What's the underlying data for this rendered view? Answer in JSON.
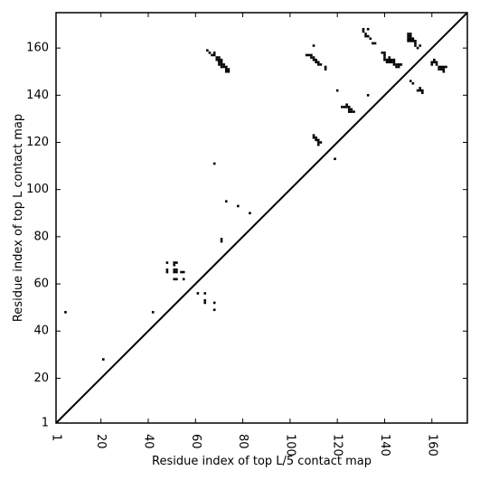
{
  "chart_data": {
    "type": "scatter",
    "xlabel": "Residue index of top L/5 contact map",
    "ylabel": "Residue index of top L contact map",
    "xlim": [
      1,
      175
    ],
    "ylim": [
      1,
      175
    ],
    "xticks": [
      1,
      20,
      40,
      60,
      80,
      100,
      120,
      140,
      160
    ],
    "yticks": [
      1,
      20,
      40,
      60,
      80,
      100,
      120,
      140,
      160
    ],
    "diagonal": true,
    "grid": false,
    "color": "#000000",
    "points": [
      [
        5,
        48
      ],
      [
        21,
        28
      ],
      [
        42,
        48
      ],
      [
        48,
        65
      ],
      [
        48,
        66
      ],
      [
        48,
        69
      ],
      [
        51,
        62
      ],
      [
        51,
        65
      ],
      [
        51,
        66
      ],
      [
        51,
        68
      ],
      [
        51,
        69
      ],
      [
        52,
        62
      ],
      [
        52,
        65
      ],
      [
        52,
        66
      ],
      [
        52,
        69
      ],
      [
        54,
        65
      ],
      [
        55,
        65
      ],
      [
        55,
        62
      ],
      [
        61,
        56
      ],
      [
        64,
        52
      ],
      [
        64,
        53
      ],
      [
        64,
        56
      ],
      [
        68,
        49
      ],
      [
        68,
        52
      ],
      [
        68,
        111
      ],
      [
        71,
        78
      ],
      [
        71,
        79
      ],
      [
        73,
        95
      ],
      [
        78,
        93
      ],
      [
        83,
        90
      ],
      [
        65,
        159
      ],
      [
        66,
        158
      ],
      [
        67,
        157
      ],
      [
        68,
        158
      ],
      [
        68,
        157
      ],
      [
        69,
        156
      ],
      [
        70,
        156
      ],
      [
        70,
        155
      ],
      [
        69,
        155
      ],
      [
        71,
        155
      ],
      [
        71,
        154
      ],
      [
        70,
        154
      ],
      [
        70,
        153
      ],
      [
        71,
        153
      ],
      [
        72,
        153
      ],
      [
        71,
        152
      ],
      [
        72,
        152
      ],
      [
        73,
        152
      ],
      [
        73,
        151
      ],
      [
        74,
        151
      ],
      [
        73,
        150
      ],
      [
        74,
        150
      ],
      [
        107,
        157
      ],
      [
        108,
        157
      ],
      [
        109,
        157
      ],
      [
        109,
        156
      ],
      [
        110,
        156
      ],
      [
        110,
        155
      ],
      [
        110,
        161
      ],
      [
        111,
        155
      ],
      [
        111,
        154
      ],
      [
        112,
        154
      ],
      [
        112,
        153
      ],
      [
        113,
        153
      ],
      [
        115,
        152
      ],
      [
        115,
        151
      ],
      [
        110,
        123
      ],
      [
        110,
        122
      ],
      [
        111,
        122
      ],
      [
        111,
        121
      ],
      [
        112,
        121
      ],
      [
        112,
        120
      ],
      [
        112,
        119
      ],
      [
        113,
        120
      ],
      [
        119,
        113
      ],
      [
        120,
        142
      ],
      [
        122,
        135
      ],
      [
        123,
        135
      ],
      [
        124,
        135
      ],
      [
        124,
        136
      ],
      [
        125,
        135
      ],
      [
        125,
        134
      ],
      [
        125,
        133
      ],
      [
        126,
        134
      ],
      [
        126,
        133
      ],
      [
        127,
        133
      ],
      [
        131,
        168
      ],
      [
        131,
        167
      ],
      [
        132,
        166
      ],
      [
        132,
        165
      ],
      [
        133,
        165
      ],
      [
        133,
        168
      ],
      [
        134,
        164
      ],
      [
        135,
        162
      ],
      [
        136,
        162
      ],
      [
        133,
        140
      ],
      [
        139,
        158
      ],
      [
        140,
        158
      ],
      [
        140,
        157
      ],
      [
        140,
        156
      ],
      [
        140,
        155
      ],
      [
        141,
        155
      ],
      [
        141,
        154
      ],
      [
        142,
        156
      ],
      [
        142,
        155
      ],
      [
        142,
        154
      ],
      [
        143,
        155
      ],
      [
        143,
        154
      ],
      [
        144,
        155
      ],
      [
        144,
        154
      ],
      [
        144,
        153
      ],
      [
        145,
        153
      ],
      [
        145,
        152
      ],
      [
        146,
        152
      ],
      [
        146,
        153
      ],
      [
        147,
        153
      ],
      [
        150,
        166
      ],
      [
        150,
        165
      ],
      [
        150,
        164
      ],
      [
        150,
        163
      ],
      [
        151,
        166
      ],
      [
        151,
        165
      ],
      [
        151,
        164
      ],
      [
        151,
        163
      ],
      [
        152,
        164
      ],
      [
        152,
        163
      ],
      [
        153,
        163
      ],
      [
        153,
        162
      ],
      [
        153,
        161
      ],
      [
        154,
        160
      ],
      [
        155,
        161
      ],
      [
        151,
        146
      ],
      [
        152,
        145
      ],
      [
        154,
        142
      ],
      [
        155,
        142
      ],
      [
        155,
        143
      ],
      [
        156,
        142
      ],
      [
        156,
        141
      ],
      [
        160,
        154
      ],
      [
        160,
        153
      ],
      [
        161,
        155
      ],
      [
        161,
        154
      ],
      [
        162,
        154
      ],
      [
        162,
        153
      ],
      [
        163,
        152
      ],
      [
        163,
        151
      ],
      [
        164,
        152
      ],
      [
        164,
        151
      ],
      [
        165,
        152
      ],
      [
        165,
        151
      ],
      [
        165,
        150
      ],
      [
        166,
        152
      ]
    ]
  }
}
